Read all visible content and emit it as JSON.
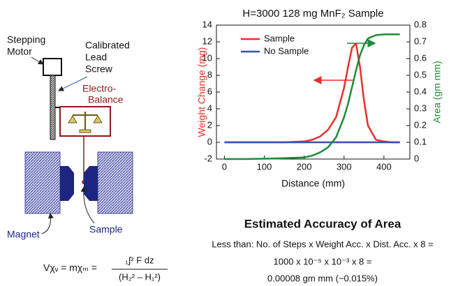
{
  "chart_data": {
    "type": "line",
    "title": "H=3000 128 mg MnF₂ Sample",
    "x_label": "Distance (mm)",
    "y_label": "Weight Change (mg)",
    "y2_label": "Area (gm mm)",
    "x": [
      0,
      50,
      100,
      150,
      200,
      220,
      240,
      260,
      280,
      300,
      310,
      320,
      330,
      340,
      350,
      360,
      380,
      400,
      420,
      440
    ],
    "series": [
      {
        "name": "Sample",
        "color": "#e8302a",
        "values": [
          0,
          0,
          0,
          0,
          0.1,
          0.3,
          0.7,
          1.5,
          3,
          6.5,
          9,
          11.3,
          11.8,
          9,
          5,
          2,
          0.3,
          0.1,
          0,
          0
        ]
      },
      {
        "name": "No Sample",
        "color": "#3a4fb0",
        "values": [
          0,
          0,
          0,
          0,
          0,
          0,
          0,
          0,
          0,
          0,
          0,
          0,
          0,
          0,
          0,
          0,
          0,
          0,
          0,
          0
        ]
      },
      {
        "color": "#1e8a3a",
        "axis": "y2",
        "values": [
          0,
          0,
          0.002,
          0.005,
          0.01,
          0.02,
          0.04,
          0.07,
          0.13,
          0.25,
          0.33,
          0.43,
          0.53,
          0.62,
          0.68,
          0.72,
          0.74,
          0.745,
          0.745,
          0.745
        ]
      }
    ],
    "xlim": [
      -20,
      465
    ],
    "xticks": [
      0,
      100,
      200,
      300,
      400
    ],
    "ylim": [
      -2,
      14
    ],
    "yticks": [
      -2,
      0,
      2,
      4,
      6,
      8,
      10,
      12,
      14
    ],
    "y2lim": [
      0,
      0.8
    ],
    "y2ticks": [
      0,
      0.1,
      0.2,
      0.3,
      0.4,
      0.5,
      0.6,
      0.7,
      0.8
    ],
    "grid": false,
    "legend": "upper left"
  },
  "diagram": {
    "motor": [
      "Stepping",
      "Motor"
    ],
    "screw": [
      "Calibrated",
      "Lead",
      "Screw"
    ],
    "balance": [
      "Electro-",
      "Balance"
    ],
    "magnet": "Magnet",
    "sample": "Sample",
    "formula": {
      "left": "Vχᵥ = mχₘ =",
      "numerator": "₁∫² F dz",
      "denominator": "(H₂² – H₁²)"
    }
  },
  "accuracy": {
    "title": "Estimated Accuracy of Area",
    "lines": [
      "Less than: No. of Steps x Weight  Acc. x Dist. Acc. x 8 =",
      "1000 x 10⁻⁵ x 10⁻³ x 8 =",
      "0.00008 gm mm (~0.015%)"
    ]
  }
}
